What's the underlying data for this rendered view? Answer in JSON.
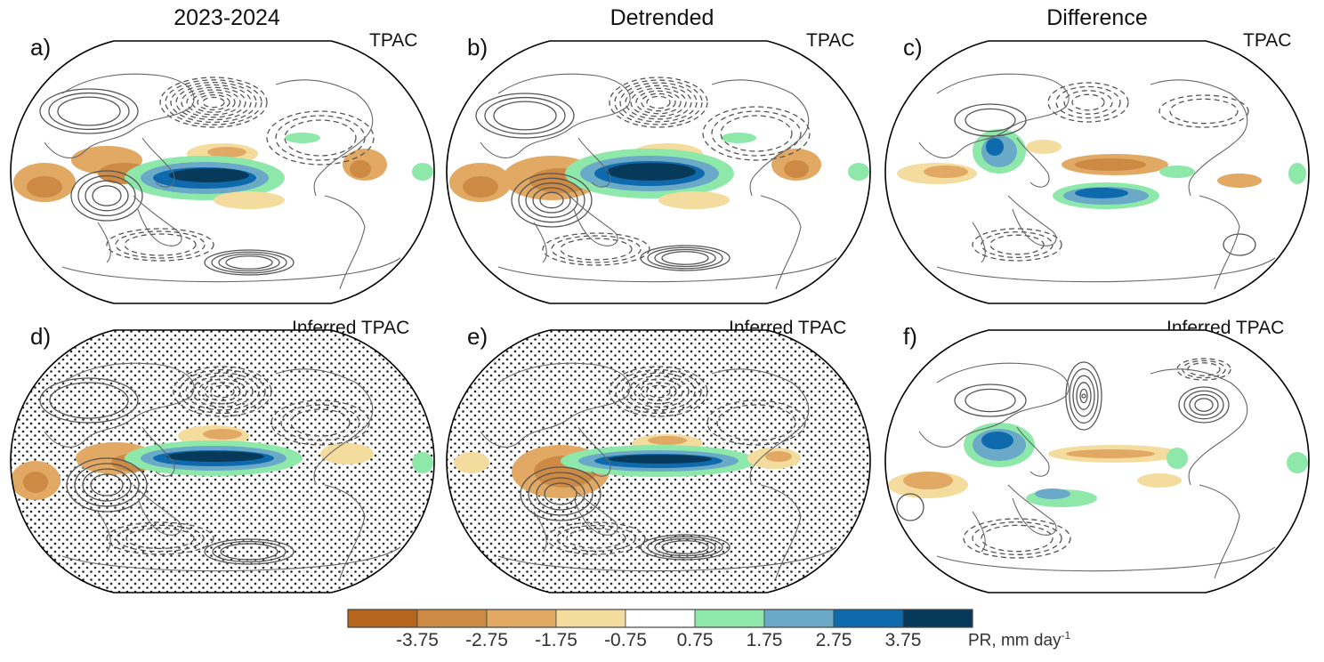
{
  "columns": [
    {
      "title": "2023-2024"
    },
    {
      "title": "Detrended"
    },
    {
      "title": "Difference"
    }
  ],
  "panels": [
    {
      "label": "a)",
      "tag": "TPAC",
      "stipple": false,
      "variant": "obs"
    },
    {
      "label": "b)",
      "tag": "TPAC",
      "stipple": false,
      "variant": "detr"
    },
    {
      "label": "c)",
      "tag": "TPAC",
      "stipple": false,
      "variant": "diff"
    },
    {
      "label": "d)",
      "tag": "Inferred TPAC",
      "stipple": true,
      "variant": "inf"
    },
    {
      "label": "e)",
      "tag": "Inferred TPAC",
      "stipple": true,
      "variant": "infdetr"
    },
    {
      "label": "f)",
      "tag": "Inferred TPAC",
      "stipple": false,
      "variant": "infdiff"
    }
  ],
  "colorbar": {
    "title": "PR, mm day",
    "title_sup": "-1",
    "ticks": [
      "-3.75",
      "-2.75",
      "-1.75",
      "-0.75",
      "0.75",
      "1.75",
      "2.75",
      "3.75"
    ],
    "colors": [
      "#b5651d",
      "#cc8a45",
      "#e2a964",
      "#f3dc9d",
      "#ffffff",
      "#8ee8aa",
      "#6aa9c8",
      "#0e6aad",
      "#073a5a"
    ]
  }
}
